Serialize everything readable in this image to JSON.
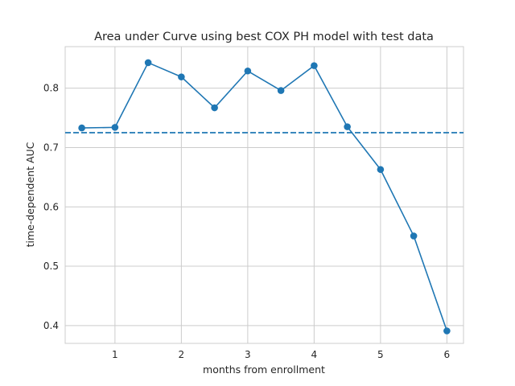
{
  "chart_data": {
    "type": "line",
    "title": "Area under Curve using best COX PH model with test data",
    "xlabel": "months from enrollment",
    "ylabel": "time-dependent AUC",
    "xlim": [
      0.25,
      6.25
    ],
    "ylim": [
      0.37,
      0.87
    ],
    "xticks": [
      1,
      2,
      3,
      4,
      5,
      6
    ],
    "yticks": [
      0.4,
      0.5,
      0.6,
      0.7,
      0.8
    ],
    "xtick_labels": [
      "1",
      "2",
      "3",
      "4",
      "5",
      "6"
    ],
    "ytick_labels": [
      "0.4",
      "0.5",
      "0.6",
      "0.7",
      "0.8"
    ],
    "grid": true,
    "series": [
      {
        "color": "#1f77b4",
        "marker": "circle",
        "line_style": "solid",
        "x": [
          0.5,
          1,
          1.5,
          2,
          2.5,
          3,
          3.5,
          4,
          4.5,
          5,
          5.5,
          6
        ],
        "y": [
          0.733,
          0.734,
          0.843,
          0.819,
          0.767,
          0.829,
          0.796,
          0.838,
          0.735,
          0.663,
          0.551,
          0.391
        ]
      }
    ],
    "reference_line": {
      "orientation": "horizontal",
      "y": 0.725,
      "color": "#1f77b4",
      "line_style": "dashed"
    }
  }
}
